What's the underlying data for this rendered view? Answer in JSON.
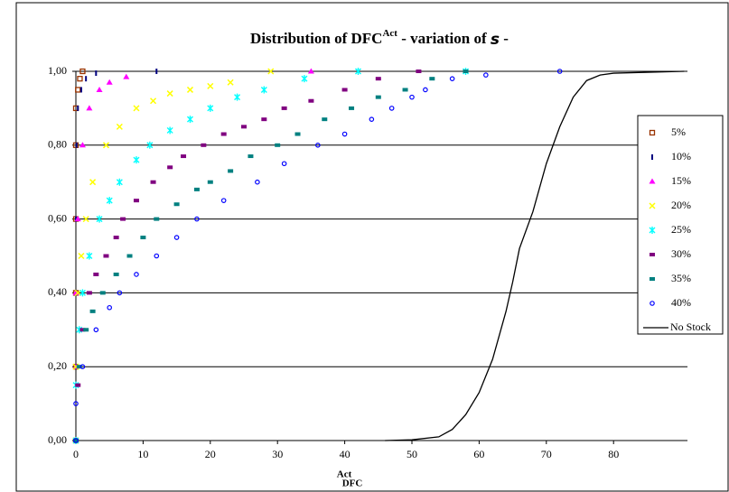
{
  "chart_data": {
    "type": "scatter",
    "title": {
      "text": "Distribution of DFC",
      "superscript": "Act",
      "suffix": " - variation of ",
      "symbol": "s",
      "end": " -"
    },
    "x_label": "DFC",
    "x_label_sub": "Act",
    "xlim": [
      0,
      91
    ],
    "xticks": [
      0,
      10,
      20,
      30,
      40,
      50,
      60,
      70,
      80
    ],
    "ylim": [
      0,
      1
    ],
    "yticks": [
      {
        "value": 0,
        "label": "0,00"
      },
      {
        "value": 0.2,
        "label": "0,20"
      },
      {
        "value": 0.4,
        "label": "0,40"
      },
      {
        "value": 0.6,
        "label": "0,60"
      },
      {
        "value": 0.8,
        "label": "0,80"
      },
      {
        "value": 1,
        "label": "1,00"
      }
    ],
    "grid": true,
    "legend": "right",
    "series": [
      {
        "name": "5%",
        "color": "#993300",
        "marker": "square-open",
        "x": [
          0,
          0,
          0,
          0,
          0,
          0,
          0.3,
          0.6,
          1
        ],
        "values": [
          0,
          0.2,
          0.4,
          0.6,
          0.8,
          0.9,
          0.95,
          0.98,
          1
        ]
      },
      {
        "name": "10%",
        "color": "#000080",
        "marker": "dash",
        "x": [
          0,
          0,
          0,
          0,
          0.1,
          0.3,
          0.8,
          1.5,
          3,
          12
        ],
        "values": [
          0,
          0.2,
          0.4,
          0.6,
          0.8,
          0.9,
          0.95,
          0.98,
          0.995,
          1
        ]
      },
      {
        "name": "15%",
        "color": "#ff00ff",
        "marker": "triangle",
        "x": [
          0,
          0,
          0,
          0.3,
          1,
          2,
          3.5,
          5,
          7.5,
          35
        ],
        "values": [
          0,
          0.2,
          0.4,
          0.6,
          0.8,
          0.9,
          0.95,
          0.97,
          0.985,
          1
        ]
      },
      {
        "name": "20%",
        "color": "#ffff00",
        "marker": "x",
        "x": [
          0,
          0,
          0.3,
          0.8,
          1.5,
          2.5,
          4.5,
          6.5,
          9,
          11.5,
          14,
          17,
          20,
          23,
          29
        ],
        "values": [
          0,
          0.2,
          0.4,
          0.5,
          0.6,
          0.7,
          0.8,
          0.85,
          0.9,
          0.92,
          0.94,
          0.95,
          0.96,
          0.97,
          1
        ]
      },
      {
        "name": "25%",
        "color": "#00ffff",
        "marker": "star",
        "x": [
          0,
          0,
          0.5,
          1,
          2,
          3.5,
          5,
          6.5,
          9,
          11,
          14,
          17,
          20,
          24,
          28,
          34,
          42,
          58
        ],
        "values": [
          0,
          0.15,
          0.3,
          0.4,
          0.5,
          0.6,
          0.65,
          0.7,
          0.76,
          0.8,
          0.84,
          0.87,
          0.9,
          0.93,
          0.95,
          0.98,
          1,
          1
        ]
      },
      {
        "name": "30%",
        "color": "#800080",
        "marker": "square",
        "x": [
          0,
          0.3,
          1,
          2,
          3,
          4.5,
          6,
          7,
          9,
          11.5,
          14,
          16,
          19,
          22,
          25,
          28,
          31,
          35,
          40,
          45,
          51
        ],
        "values": [
          0,
          0.15,
          0.3,
          0.4,
          0.45,
          0.5,
          0.55,
          0.6,
          0.65,
          0.7,
          0.74,
          0.77,
          0.8,
          0.83,
          0.85,
          0.87,
          0.9,
          0.92,
          0.95,
          0.98,
          1
        ]
      },
      {
        "name": "35%",
        "color": "#008080",
        "marker": "square",
        "x": [
          0,
          0.5,
          1.5,
          2.5,
          4,
          6,
          8,
          10,
          12,
          15,
          18,
          20,
          23,
          26,
          30,
          33,
          37,
          41,
          45,
          49,
          53,
          58
        ],
        "values": [
          0,
          0.2,
          0.3,
          0.35,
          0.4,
          0.45,
          0.5,
          0.55,
          0.6,
          0.64,
          0.68,
          0.7,
          0.73,
          0.77,
          0.8,
          0.83,
          0.87,
          0.9,
          0.93,
          0.95,
          0.98,
          1
        ]
      },
      {
        "name": "40%",
        "color": "#0000ff",
        "marker": "circle-open",
        "x": [
          0,
          0,
          1,
          3,
          5,
          6.5,
          9,
          12,
          15,
          18,
          22,
          27,
          31,
          36,
          40,
          44,
          47,
          50,
          52,
          56,
          61,
          72
        ],
        "values": [
          0,
          0.1,
          0.2,
          0.3,
          0.36,
          0.4,
          0.45,
          0.5,
          0.55,
          0.6,
          0.65,
          0.7,
          0.75,
          0.8,
          0.83,
          0.87,
          0.9,
          0.93,
          0.95,
          0.98,
          0.99,
          1
        ]
      },
      {
        "name": "No Stock",
        "color": "#000000",
        "marker": "line",
        "x": [
          46,
          50,
          54,
          56,
          58,
          60,
          62,
          64,
          65,
          66,
          68,
          70,
          72,
          74,
          76,
          78,
          80,
          90.5
        ],
        "values": [
          0,
          0.002,
          0.01,
          0.03,
          0.07,
          0.13,
          0.22,
          0.35,
          0.43,
          0.52,
          0.62,
          0.75,
          0.85,
          0.93,
          0.975,
          0.99,
          0.995,
          1
        ]
      }
    ]
  }
}
